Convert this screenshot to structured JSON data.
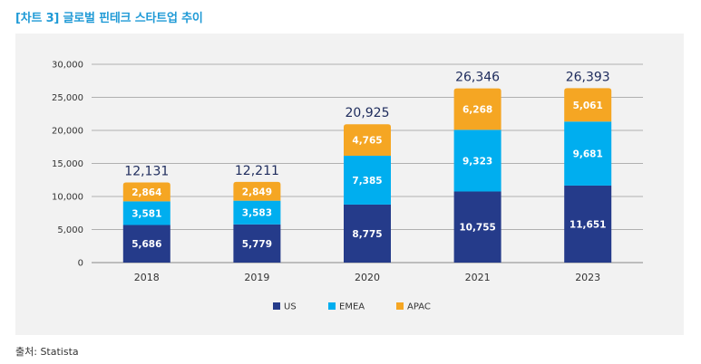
{
  "title": "[차트 3] 글로벌 핀테크 스타트업 추이",
  "source": "출처: Statista",
  "chart_data": {
    "type": "bar",
    "stacked": true,
    "categories": [
      "2018",
      "2019",
      "2020",
      "2021",
      "2023"
    ],
    "series": [
      {
        "name": "US",
        "color": "#253b8a",
        "values": [
          5686,
          5779,
          8775,
          10755,
          11651
        ]
      },
      {
        "name": "EMEA",
        "color": "#00aeef",
        "values": [
          3581,
          3583,
          7385,
          9323,
          9681
        ]
      },
      {
        "name": "APAC",
        "color": "#f5a623",
        "values": [
          2864,
          2849,
          4765,
          6268,
          5061
        ]
      }
    ],
    "series_labels": [
      [
        "5,686",
        "5,779",
        "8,775",
        "10,755",
        "11,651"
      ],
      [
        "3,581",
        "3,583",
        "7,385",
        "9,323",
        "9,681"
      ],
      [
        "2,864",
        "2,849",
        "4,765",
        "6,268",
        "5,061"
      ]
    ],
    "totals": [
      12131,
      12211,
      20925,
      26346,
      26393
    ],
    "total_labels": [
      "12,131",
      "12,211",
      "20,925",
      "26,346",
      "26,393"
    ],
    "ylim": [
      0,
      30000
    ],
    "yticks": [
      0,
      5000,
      10000,
      15000,
      20000,
      25000,
      30000
    ],
    "ytick_labels": [
      "0",
      "5,000",
      "10,000",
      "15,000",
      "20,000",
      "25,000",
      "30,000"
    ],
    "grid": true,
    "legend_position": "bottom-center"
  }
}
